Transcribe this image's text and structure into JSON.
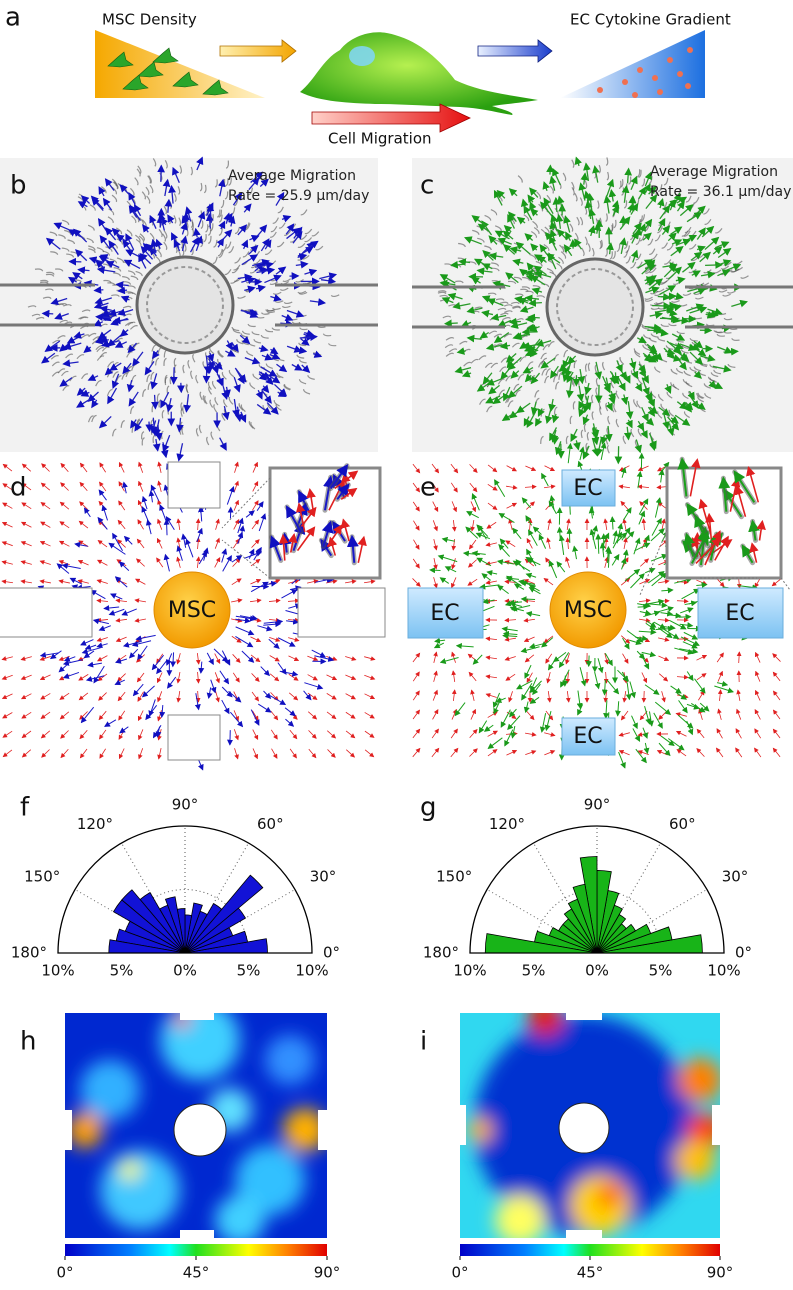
{
  "panel_a": {
    "label": "a",
    "left_caption": "MSC Density",
    "right_caption": "EC Cytokine Gradient",
    "arrow_caption": "Cell Migration"
  },
  "panel_b": {
    "label": "b",
    "annotation": [
      "Average Migration",
      "Rate = 25.9 µm/day"
    ]
  },
  "panel_c": {
    "label": "c",
    "annotation": [
      "Average Migration",
      "Rate = 36.1 µm/day"
    ]
  },
  "panel_d": {
    "label": "d",
    "center_label": "MSC"
  },
  "panel_e": {
    "label": "e",
    "center_label": "MSC",
    "ec_labels": [
      "EC",
      "EC",
      "EC",
      "EC"
    ]
  },
  "chart_data": [
    {
      "type": "polar_bar",
      "label": "f",
      "color": "#1212d6",
      "bin_edges": [
        0,
        10,
        20,
        30,
        40,
        50,
        60,
        70,
        80,
        90,
        100,
        110,
        120,
        130,
        140,
        150,
        160,
        170,
        180
      ],
      "values": [
        6.5,
        5.0,
        4.0,
        5.5,
        8.0,
        4.5,
        3.5,
        4.0,
        3.0,
        3.5,
        4.5,
        4.0,
        5.5,
        6.5,
        6.5,
        5.0,
        5.5,
        6.0
      ],
      "rlim": [
        0,
        10
      ],
      "rticks": [
        {
          "value": 0,
          "label": "0%"
        },
        {
          "value": 5,
          "label": "5%"
        },
        {
          "value": 10,
          "label": "10%"
        }
      ],
      "theta_ticks": [
        {
          "value": 0,
          "label": "0°"
        },
        {
          "value": 30,
          "label": "30°"
        },
        {
          "value": 60,
          "label": "60°"
        },
        {
          "value": 90,
          "label": "90°"
        },
        {
          "value": 120,
          "label": "120°"
        },
        {
          "value": 150,
          "label": "150°"
        },
        {
          "value": 180,
          "label": "180°"
        }
      ]
    },
    {
      "type": "polar_bar",
      "label": "g",
      "color": "#18b418",
      "bin_edges": [
        0,
        10,
        20,
        30,
        40,
        50,
        60,
        70,
        80,
        90,
        100,
        110,
        120,
        130,
        140,
        150,
        160,
        170,
        180
      ],
      "values": [
        8.3,
        6.0,
        4.5,
        3.5,
        3.0,
        3.5,
        4.0,
        5.0,
        6.5,
        7.6,
        5.5,
        4.5,
        4.0,
        3.5,
        3.5,
        4.0,
        5.0,
        8.8
      ],
      "rlim": [
        0,
        10
      ],
      "rticks": [
        {
          "value": 0,
          "label": "0%"
        },
        {
          "value": 5,
          "label": "5%"
        },
        {
          "value": 10,
          "label": "10%"
        }
      ],
      "theta_ticks": [
        {
          "value": 0,
          "label": "0°"
        },
        {
          "value": 30,
          "label": "30°"
        },
        {
          "value": 60,
          "label": "60°"
        },
        {
          "value": 90,
          "label": "90°"
        },
        {
          "value": 120,
          "label": "120°"
        },
        {
          "value": 150,
          "label": "150°"
        },
        {
          "value": 180,
          "label": "180°"
        }
      ]
    }
  ],
  "panel_h": {
    "label": "h",
    "colorbar": {
      "clim": [
        0,
        90
      ],
      "ticks": [
        {
          "value": 0,
          "label": "0°"
        },
        {
          "value": 45,
          "label": "45°"
        },
        {
          "value": 90,
          "label": "90°"
        }
      ]
    }
  },
  "panel_i": {
    "label": "i",
    "colorbar": {
      "clim": [
        0,
        90
      ],
      "ticks": [
        {
          "value": 0,
          "label": "0°"
        },
        {
          "value": 45,
          "label": "45°"
        },
        {
          "value": 90,
          "label": "90°"
        }
      ]
    }
  }
}
